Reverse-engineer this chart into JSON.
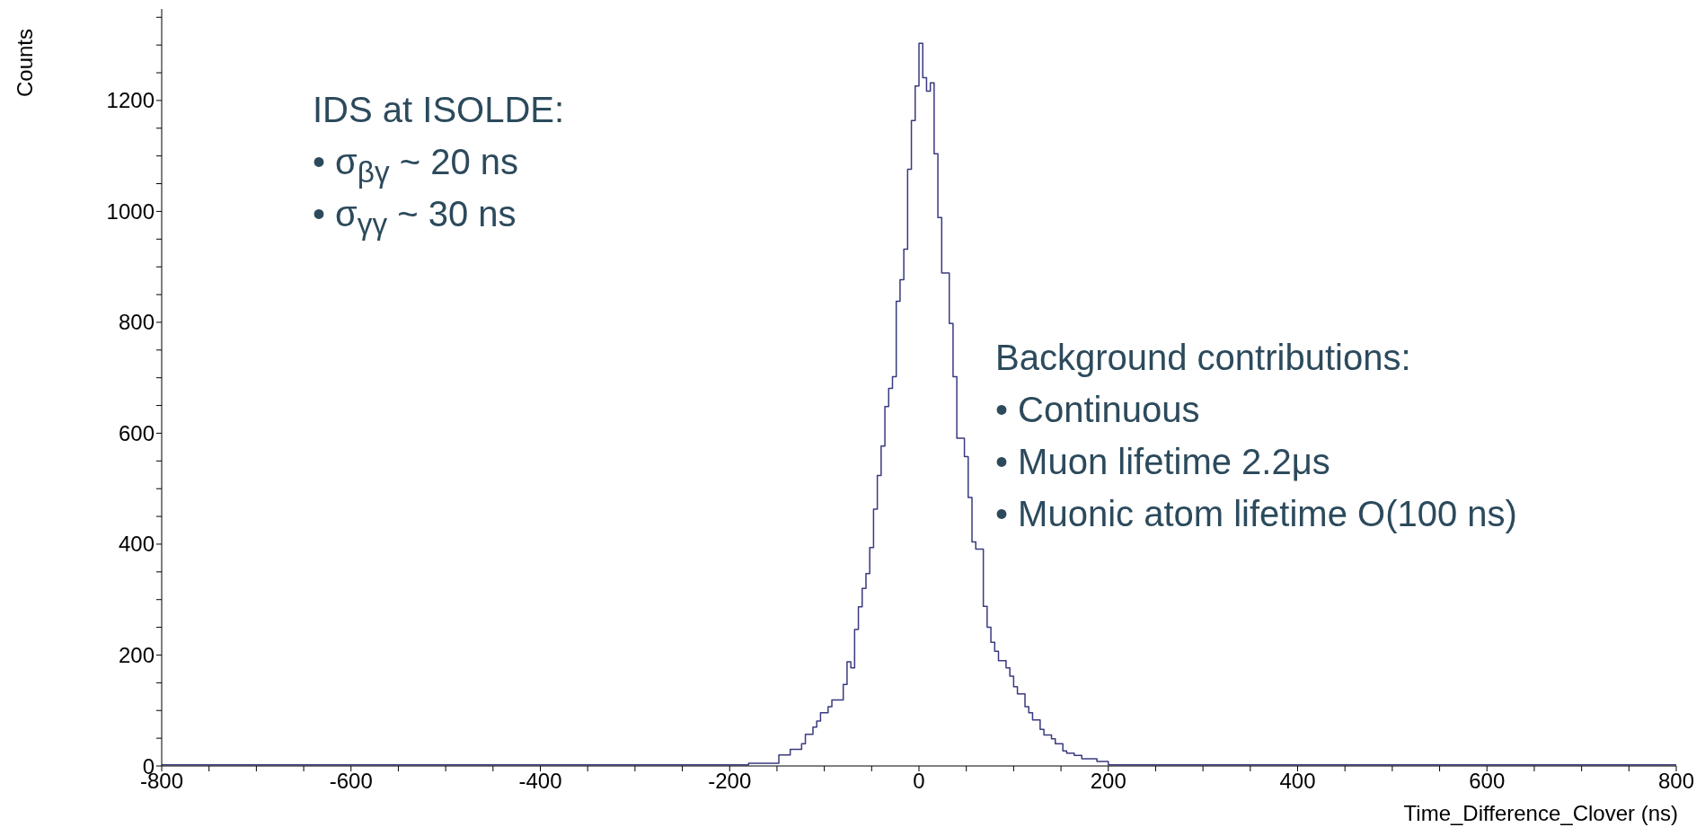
{
  "chart_data": {
    "type": "histogram",
    "xlabel": "Time_Difference_Clover (ns)",
    "ylabel": "Counts",
    "bins": [
      -800,
      -180,
      -148,
      -136,
      -124,
      -120,
      -112,
      -108,
      -104,
      -96,
      -92,
      -80,
      -76,
      -72,
      -68,
      -64,
      -60,
      -56,
      -52,
      -48,
      -44,
      -40,
      -36,
      -32,
      -28,
      -24,
      -20,
      -16,
      -12,
      -8,
      -4,
      0,
      4,
      8,
      12,
      16,
      20,
      24,
      32,
      36,
      40,
      48,
      52,
      56,
      60,
      68,
      72,
      76,
      80,
      84,
      92,
      96,
      100,
      104,
      112,
      116,
      120,
      128,
      132,
      140,
      144,
      152,
      156,
      164,
      172,
      188,
      200,
      800
    ],
    "values": [
      2,
      5,
      20,
      30,
      40,
      57,
      70,
      81,
      96,
      107,
      119,
      147,
      188,
      177,
      246,
      287,
      320,
      347,
      394,
      463,
      524,
      577,
      648,
      681,
      702,
      838,
      877,
      932,
      1076,
      1164,
      1226,
      1303,
      1241,
      1217,
      1232,
      1104,
      989,
      889,
      798,
      702,
      591,
      558,
      484,
      404,
      391,
      288,
      250,
      223,
      207,
      190,
      177,
      162,
      143,
      130,
      107,
      96,
      83,
      66,
      56,
      49,
      40,
      27,
      23,
      19,
      13,
      8,
      2
    ],
    "color": "#3a3a80",
    "xlim": [
      -800,
      800
    ],
    "xticks": [
      -800,
      {
        "value": -750,
        "label": null
      },
      {
        "value": -700,
        "label": null
      },
      {
        "value": -650,
        "label": null
      },
      -600,
      {
        "value": -550,
        "label": null
      },
      {
        "value": -500,
        "label": null
      },
      {
        "value": -450,
        "label": null
      },
      -400,
      {
        "value": -350,
        "label": null
      },
      {
        "value": -300,
        "label": null
      },
      {
        "value": -250,
        "label": null
      },
      -200,
      {
        "value": -150,
        "label": null
      },
      {
        "value": -100,
        "label": null
      },
      {
        "value": -50,
        "label": null
      },
      0,
      {
        "value": 50,
        "label": null
      },
      {
        "value": 100,
        "label": null
      },
      {
        "value": 150,
        "label": null
      },
      200,
      {
        "value": 250,
        "label": null
      },
      {
        "value": 300,
        "label": null
      },
      {
        "value": 350,
        "label": null
      },
      400,
      {
        "value": 450,
        "label": null
      },
      {
        "value": 500,
        "label": null
      },
      {
        "value": 550,
        "label": null
      },
      600,
      {
        "value": 650,
        "label": null
      },
      {
        "value": 700,
        "label": null
      },
      {
        "value": 750,
        "label": null
      },
      800
    ],
    "ylim": [
      0,
      1365
    ],
    "yticks": [
      0,
      {
        "value": 50,
        "label": null
      },
      {
        "value": 100,
        "label": null
      },
      {
        "value": 150,
        "label": null
      },
      200,
      {
        "value": 250,
        "label": null
      },
      {
        "value": 300,
        "label": null
      },
      {
        "value": 350,
        "label": null
      },
      400,
      {
        "value": 450,
        "label": null
      },
      {
        "value": 500,
        "label": null
      },
      {
        "value": 550,
        "label": null
      },
      600,
      {
        "value": 650,
        "label": null
      },
      {
        "value": 700,
        "label": null
      },
      {
        "value": 750,
        "label": null
      },
      800,
      {
        "value": 850,
        "label": null
      },
      {
        "value": 900,
        "label": null
      },
      {
        "value": 950,
        "label": null
      },
      1000,
      {
        "value": 1050,
        "label": null
      },
      {
        "value": 1100,
        "label": null
      },
      {
        "value": 1150,
        "label": null
      },
      1200,
      {
        "value": 1250,
        "label": null
      },
      {
        "value": 1300,
        "label": null
      },
      {
        "value": 1350,
        "label": null
      }
    ],
    "grid": false,
    "annotations": [
      "IDS at ISOLDE:",
      "• σ$_{βγ}$ ~ 20 ns",
      "• σ$_{γγ}$ ~ 30 ns",
      "Background contributions:",
      "• Continuous",
      "• Muon lifetime 2.2μs",
      "• Muonic atom lifetime O(100 ns)"
    ]
  }
}
